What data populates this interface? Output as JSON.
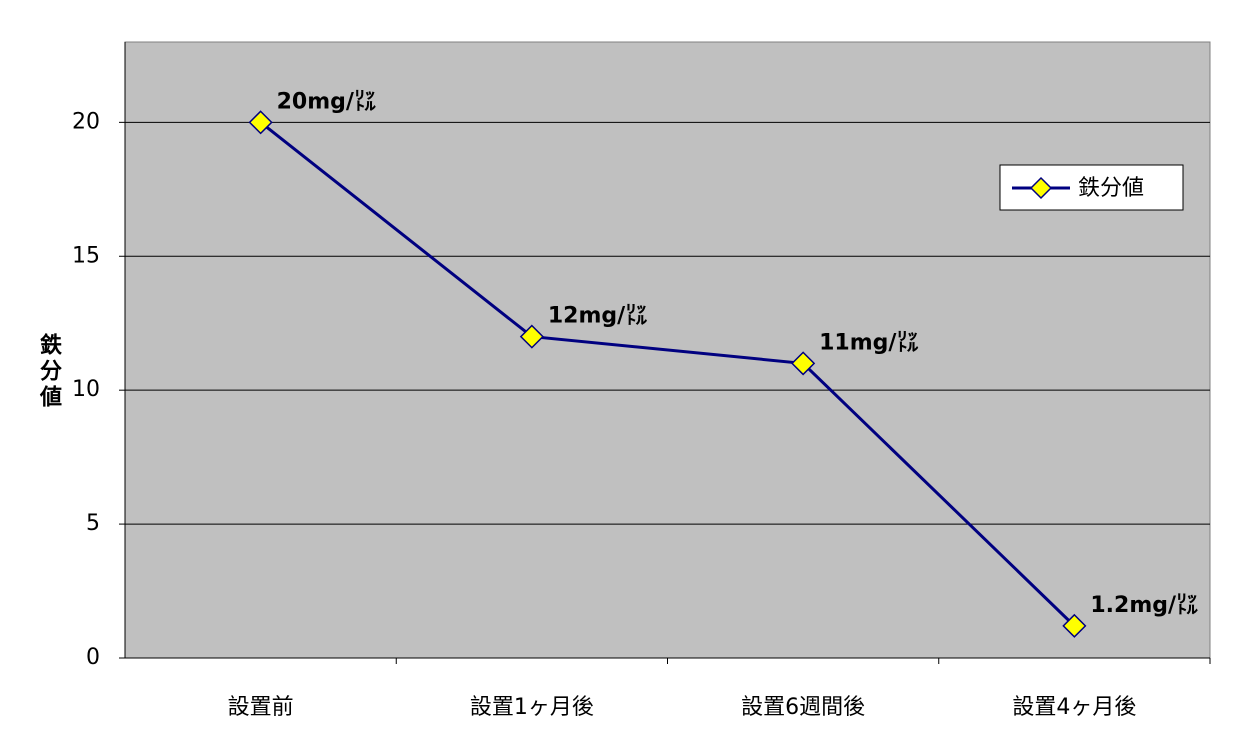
{
  "chart_data": {
    "type": "line",
    "y_label": "鉄分値",
    "categories": [
      "設置前",
      "設置1ヶ月後",
      "設置6週間後",
      "設置4ヶ月後"
    ],
    "series": [
      {
        "name": "鉄分値",
        "color": "#000080",
        "marker_color": "#ffff00",
        "values": [
          20,
          12,
          11,
          1.2
        ],
        "value_labels": [
          "20mg/㍑",
          "12mg/㍑",
          "11mg/㍑",
          "1.2mg/㍑"
        ]
      }
    ],
    "ylim": [
      0,
      23
    ],
    "yticks": [
      0,
      5,
      10,
      15,
      20
    ],
    "grid": true,
    "legend": "upper right",
    "plot_background": "#c0c0c0"
  }
}
